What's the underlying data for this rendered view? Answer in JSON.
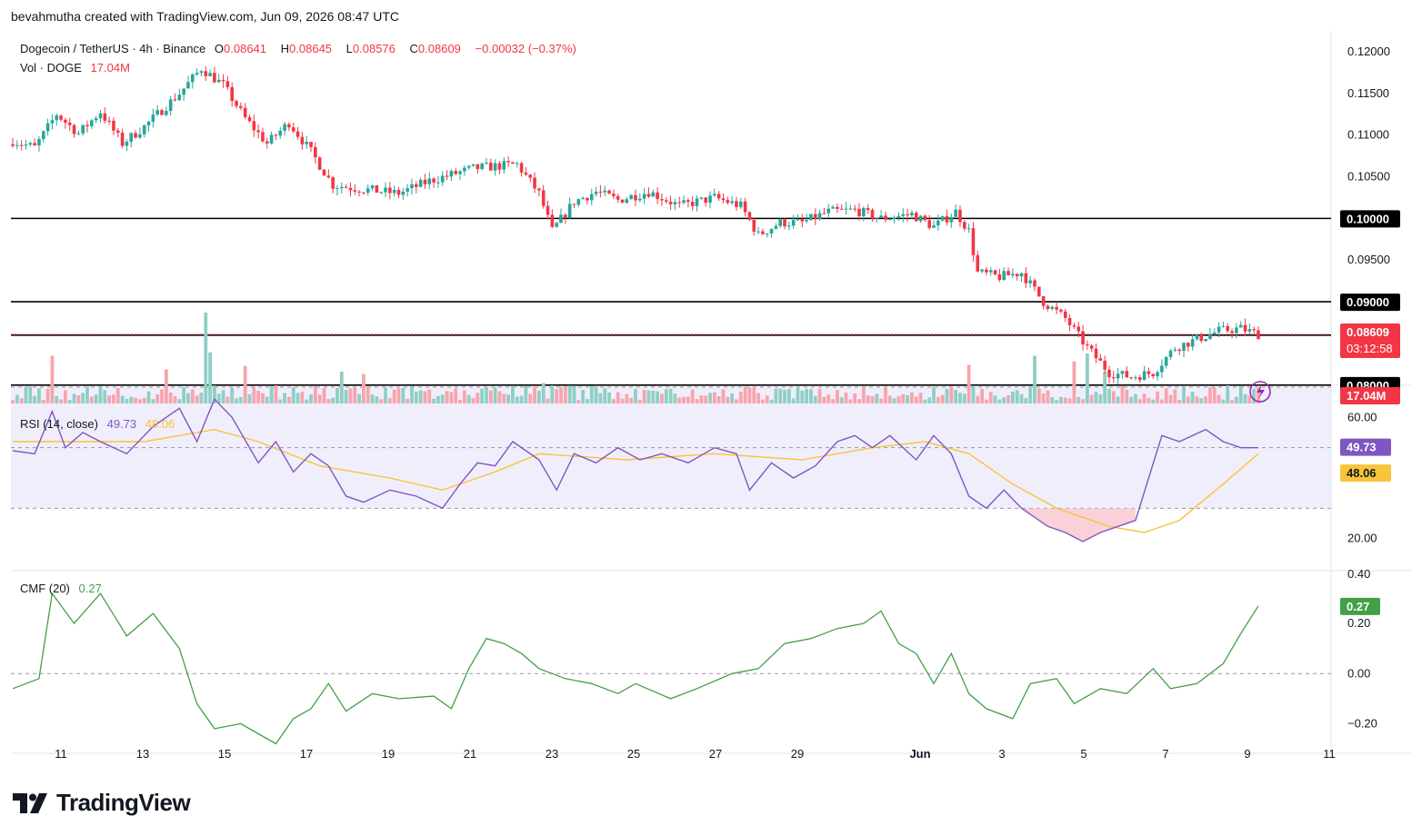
{
  "credit": "bevahmutha created with TradingView.com, Jun 09, 2026 08:47 UTC",
  "symbol": {
    "name": "Dogecoin / TetherUS · 4h · Binance",
    "o_label": "O",
    "o": "0.08641",
    "h_label": "H",
    "h": "0.08645",
    "l_label": "L",
    "l": "0.08576",
    "c_label": "C",
    "c": "0.08609",
    "change": "−0.00032 (−0.37%)"
  },
  "volume_legend": {
    "label": "Vol · DOGE",
    "value": "17.04M"
  },
  "rsi_legend": {
    "label": "RSI (14, close)",
    "rsi": "49.73",
    "ma": "48.06"
  },
  "cmf_legend": {
    "label": "CMF (20)",
    "value": "0.27"
  },
  "price_axis": {
    "ticks": [
      "0.12000",
      "0.11500",
      "0.11000",
      "0.10500",
      "0.10000",
      "0.09500",
      "0.09000",
      "0.08600",
      "0.08000"
    ],
    "last_price_label": "0.08609",
    "countdown": "03:12:58",
    "volume_label": "17.04M"
  },
  "rsi_axis": {
    "ticks": [
      "60.00",
      "20.00"
    ],
    "rsi_label": "49.73",
    "ma_label": "48.06"
  },
  "cmf_axis": {
    "ticks": [
      "0.40",
      "0.20",
      "0.00",
      "−0.20"
    ],
    "value_label": "0.27"
  },
  "time_axis": [
    "11",
    "13",
    "15",
    "17",
    "19",
    "21",
    "23",
    "25",
    "27",
    "29",
    "Jun",
    "3",
    "5",
    "7",
    "9",
    "11"
  ],
  "brand": "TradingView",
  "colors": {
    "up": "#26a69a",
    "down": "#f23645",
    "rsi": "#7e57c2",
    "rsi_ma": "#f7c43a",
    "cmf": "#43a047",
    "hline": "#000000"
  },
  "chart_data": [
    {
      "type": "candlestick",
      "title": "Dogecoin / TetherUS · 4h · Binance",
      "interval": "4h",
      "ylim": [
        0.0778,
        0.1225
      ],
      "horizontal_lines": [
        0.1,
        0.09,
        0.086,
        0.08
      ],
      "last_price": 0.08609,
      "anchors": [
        {
          "t": 0,
          "p": 0.1093
        },
        {
          "t": 5,
          "p": 0.1085
        },
        {
          "t": 10,
          "p": 0.1125
        },
        {
          "t": 15,
          "p": 0.1102
        },
        {
          "t": 20,
          "p": 0.1128
        },
        {
          "t": 25,
          "p": 0.109
        },
        {
          "t": 30,
          "p": 0.111
        },
        {
          "t": 38,
          "p": 0.115
        },
        {
          "t": 43,
          "p": 0.118
        },
        {
          "t": 48,
          "p": 0.116
        },
        {
          "t": 53,
          "p": 0.112
        },
        {
          "t": 58,
          "p": 0.109
        },
        {
          "t": 63,
          "p": 0.1115
        },
        {
          "t": 68,
          "p": 0.108
        },
        {
          "t": 73,
          "p": 0.104
        },
        {
          "t": 80,
          "p": 0.1035
        },
        {
          "t": 88,
          "p": 0.103
        },
        {
          "t": 95,
          "p": 0.1045
        },
        {
          "t": 105,
          "p": 0.106
        },
        {
          "t": 115,
          "p": 0.1065
        },
        {
          "t": 120,
          "p": 0.103
        },
        {
          "t": 123,
          "p": 0.0985
        },
        {
          "t": 128,
          "p": 0.102
        },
        {
          "t": 133,
          "p": 0.1032
        },
        {
          "t": 138,
          "p": 0.1022
        },
        {
          "t": 145,
          "p": 0.1032
        },
        {
          "t": 152,
          "p": 0.1015
        },
        {
          "t": 160,
          "p": 0.1025
        },
        {
          "t": 166,
          "p": 0.1015
        },
        {
          "t": 170,
          "p": 0.098
        },
        {
          "t": 175,
          "p": 0.0995
        },
        {
          "t": 180,
          "p": 0.0995
        },
        {
          "t": 186,
          "p": 0.1008
        },
        {
          "t": 192,
          "p": 0.101
        },
        {
          "t": 198,
          "p": 0.1
        },
        {
          "t": 205,
          "p": 0.1005
        },
        {
          "t": 210,
          "p": 0.099
        },
        {
          "t": 215,
          "p": 0.1008
        },
        {
          "t": 218,
          "p": 0.0985
        },
        {
          "t": 220,
          "p": 0.0935
        },
        {
          "t": 225,
          "p": 0.093
        },
        {
          "t": 230,
          "p": 0.0935
        },
        {
          "t": 235,
          "p": 0.09
        },
        {
          "t": 240,
          "p": 0.088
        },
        {
          "t": 245,
          "p": 0.0845
        },
        {
          "t": 250,
          "p": 0.0815
        },
        {
          "t": 255,
          "p": 0.081
        },
        {
          "t": 260,
          "p": 0.0815
        },
        {
          "t": 265,
          "p": 0.0845
        },
        {
          "t": 270,
          "p": 0.0855
        },
        {
          "t": 275,
          "p": 0.0865
        },
        {
          "t": 280,
          "p": 0.0868
        },
        {
          "t": 284,
          "p": 0.08609
        }
      ]
    },
    {
      "type": "bar",
      "title": "Vol · DOGE",
      "last_value": "17.04M",
      "spikes": [
        {
          "t": 9,
          "v": 4.2
        },
        {
          "t": 35,
          "v": 3.0
        },
        {
          "t": 44,
          "v": 8.0
        },
        {
          "t": 45,
          "v": 4.5
        },
        {
          "t": 53,
          "v": 3.3
        },
        {
          "t": 75,
          "v": 2.8
        },
        {
          "t": 80,
          "v": 2.6
        },
        {
          "t": 121,
          "v": 1.8
        },
        {
          "t": 218,
          "v": 3.4
        },
        {
          "t": 233,
          "v": 4.2
        },
        {
          "t": 242,
          "v": 3.7
        },
        {
          "t": 245,
          "v": 4.4
        },
        {
          "t": 249,
          "v": 2.8
        }
      ]
    },
    {
      "type": "line",
      "title": "RSI (14, close)",
      "ylim": [
        10,
        70
      ],
      "bands": [
        30,
        50,
        70
      ],
      "series": [
        {
          "name": "RSI",
          "last": 49.73,
          "points": [
            [
              0,
              49
            ],
            [
              5,
              48
            ],
            [
              9,
              62
            ],
            [
              12,
              50
            ],
            [
              16,
              55
            ],
            [
              20,
              52
            ],
            [
              26,
              48
            ],
            [
              32,
              57
            ],
            [
              38,
              63
            ],
            [
              42,
              52
            ],
            [
              46,
              66
            ],
            [
              50,
              60
            ],
            [
              56,
              45
            ],
            [
              60,
              52
            ],
            [
              64,
              42
            ],
            [
              68,
              48
            ],
            [
              72,
              44
            ],
            [
              76,
              34
            ],
            [
              80,
              32
            ],
            [
              86,
              36
            ],
            [
              92,
              34
            ],
            [
              98,
              30
            ],
            [
              102,
              38
            ],
            [
              106,
              45
            ],
            [
              110,
              44
            ],
            [
              114,
              52
            ],
            [
              120,
              46
            ],
            [
              124,
              36
            ],
            [
              128,
              48
            ],
            [
              133,
              45
            ],
            [
              138,
              50
            ],
            [
              143,
              46
            ],
            [
              148,
              48
            ],
            [
              154,
              45
            ],
            [
              160,
              50
            ],
            [
              165,
              48
            ],
            [
              168,
              36
            ],
            [
              173,
              45
            ],
            [
              178,
              40
            ],
            [
              183,
              44
            ],
            [
              188,
              52
            ],
            [
              192,
              54
            ],
            [
              196,
              50
            ],
            [
              200,
              54
            ],
            [
              206,
              46
            ],
            [
              210,
              54
            ],
            [
              214,
              48
            ],
            [
              218,
              34
            ],
            [
              222,
              30
            ],
            [
              226,
              36
            ],
            [
              230,
              30
            ],
            [
              236,
              24
            ],
            [
              240,
              22
            ],
            [
              244,
              19
            ],
            [
              248,
              22
            ],
            [
              252,
              24
            ],
            [
              256,
              26
            ],
            [
              262,
              54
            ],
            [
              266,
              52
            ],
            [
              272,
              56
            ],
            [
              276,
              52
            ],
            [
              280,
              50
            ],
            [
              284,
              50
            ]
          ]
        },
        {
          "name": "RSI-based MA",
          "last": 48.06,
          "points": [
            [
              0,
              52
            ],
            [
              12,
              52
            ],
            [
              30,
              52
            ],
            [
              46,
              56
            ],
            [
              56,
              52
            ],
            [
              70,
              44
            ],
            [
              86,
              40
            ],
            [
              98,
              36
            ],
            [
              110,
              42
            ],
            [
              120,
              48
            ],
            [
              140,
              46
            ],
            [
              160,
              48
            ],
            [
              180,
              46
            ],
            [
              196,
              50
            ],
            [
              208,
              52
            ],
            [
              218,
              48
            ],
            [
              228,
              38
            ],
            [
              238,
              30
            ],
            [
              250,
              24
            ],
            [
              258,
              22
            ],
            [
              266,
              26
            ],
            [
              276,
              38
            ],
            [
              284,
              48
            ]
          ]
        }
      ]
    },
    {
      "type": "line",
      "title": "CMF (20)",
      "ylim": [
        -0.3,
        0.4
      ],
      "last_value": 0.27,
      "series": [
        {
          "name": "CMF",
          "points": [
            [
              0,
              -0.06
            ],
            [
              6,
              -0.02
            ],
            [
              9,
              0.32
            ],
            [
              14,
              0.2
            ],
            [
              20,
              0.32
            ],
            [
              26,
              0.15
            ],
            [
              32,
              0.24
            ],
            [
              38,
              0.1
            ],
            [
              42,
              -0.12
            ],
            [
              46,
              -0.22
            ],
            [
              52,
              -0.2
            ],
            [
              56,
              -0.24
            ],
            [
              60,
              -0.28
            ],
            [
              64,
              -0.18
            ],
            [
              68,
              -0.14
            ],
            [
              72,
              -0.04
            ],
            [
              76,
              -0.15
            ],
            [
              82,
              -0.08
            ],
            [
              88,
              -0.1
            ],
            [
              96,
              -0.09
            ],
            [
              100,
              -0.14
            ],
            [
              104,
              0.02
            ],
            [
              108,
              0.14
            ],
            [
              112,
              0.12
            ],
            [
              116,
              0.08
            ],
            [
              120,
              0.02
            ],
            [
              126,
              -0.02
            ],
            [
              132,
              -0.04
            ],
            [
              138,
              -0.08
            ],
            [
              142,
              -0.04
            ],
            [
              150,
              -0.1
            ],
            [
              156,
              -0.06
            ],
            [
              164,
              0.0
            ],
            [
              170,
              0.02
            ],
            [
              176,
              0.12
            ],
            [
              182,
              0.14
            ],
            [
              188,
              0.18
            ],
            [
              194,
              0.2
            ],
            [
              198,
              0.25
            ],
            [
              202,
              0.12
            ],
            [
              206,
              0.08
            ],
            [
              210,
              -0.04
            ],
            [
              214,
              0.08
            ],
            [
              218,
              -0.08
            ],
            [
              222,
              -0.14
            ],
            [
              228,
              -0.18
            ],
            [
              232,
              -0.04
            ],
            [
              238,
              -0.02
            ],
            [
              242,
              -0.12
            ],
            [
              248,
              -0.06
            ],
            [
              254,
              -0.08
            ],
            [
              260,
              0.02
            ],
            [
              264,
              -0.06
            ],
            [
              270,
              -0.04
            ],
            [
              276,
              0.04
            ],
            [
              280,
              0.16
            ],
            [
              284,
              0.27
            ]
          ]
        }
      ]
    }
  ]
}
